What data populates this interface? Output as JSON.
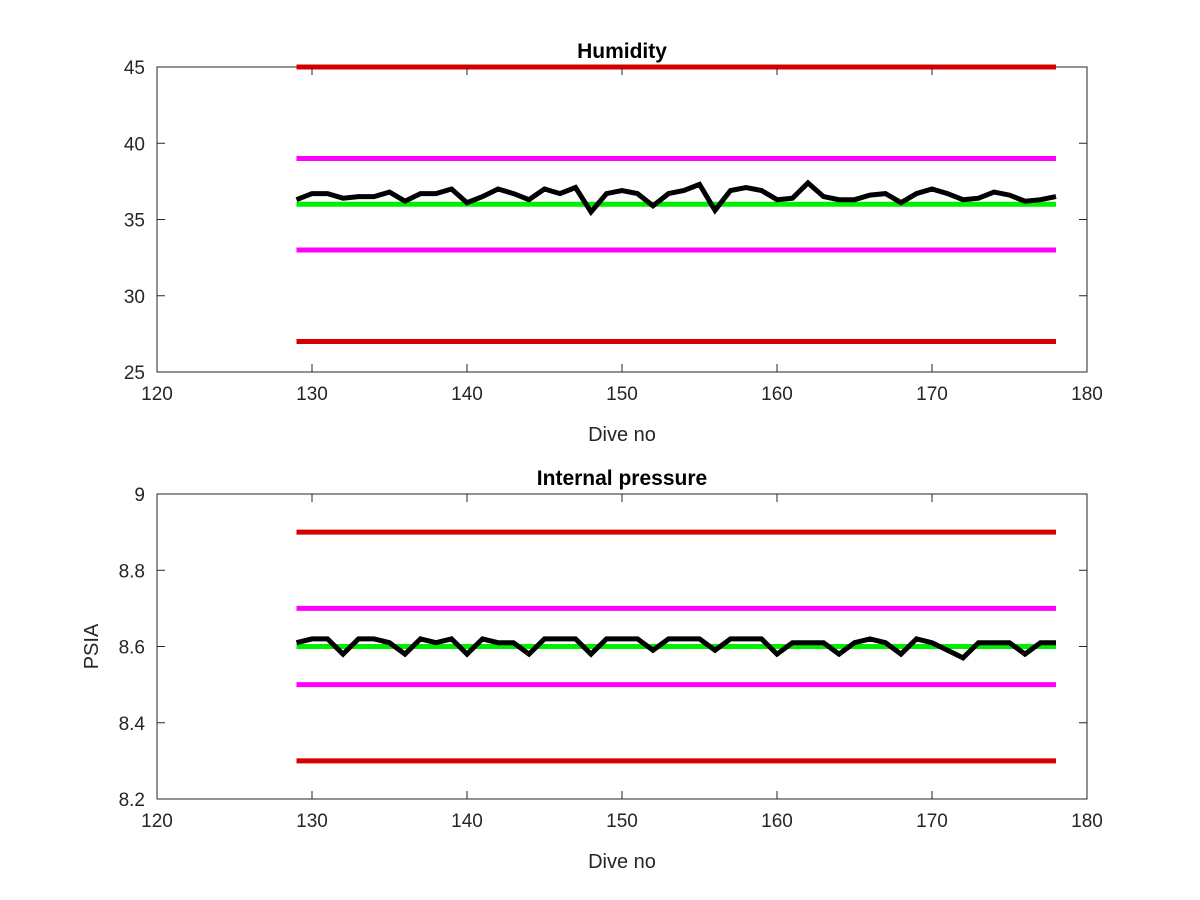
{
  "chart_data": [
    {
      "type": "line",
      "title": "Humidity",
      "xlabel": "Dive no",
      "ylabel": "",
      "xlim": [
        120,
        180
      ],
      "ylim": [
        25,
        45
      ],
      "xticks": [
        120,
        130,
        140,
        150,
        160,
        170,
        180
      ],
      "yticks": [
        25,
        30,
        35,
        40,
        45
      ],
      "xtick_labels": [
        "120",
        "130",
        "140",
        "150",
        "160",
        "170",
        "180"
      ],
      "ytick_labels": [
        "25",
        "30",
        "35",
        "40",
        "45"
      ],
      "grid": false,
      "series": [
        {
          "color": "#d40000",
          "x": [
            129,
            178
          ],
          "values": [
            45,
            45
          ]
        },
        {
          "color": "#ff00ff",
          "x": [
            129,
            178
          ],
          "values": [
            39,
            39
          ]
        },
        {
          "color": "#00ee00",
          "x": [
            129,
            178
          ],
          "values": [
            36,
            36
          ]
        },
        {
          "color": "#ff00ff",
          "x": [
            129,
            178
          ],
          "values": [
            33,
            33
          ]
        },
        {
          "color": "#d40000",
          "x": [
            129,
            178
          ],
          "values": [
            27,
            27
          ]
        },
        {
          "color": "#000000",
          "x": [
            129,
            130,
            131,
            132,
            133,
            134,
            135,
            136,
            137,
            138,
            139,
            140,
            141,
            142,
            143,
            144,
            145,
            146,
            147,
            148,
            149,
            150,
            151,
            152,
            153,
            154,
            155,
            156,
            157,
            158,
            159,
            160,
            161,
            162,
            163,
            164,
            165,
            166,
            167,
            168,
            169,
            170,
            171,
            172,
            173,
            174,
            175,
            176,
            177,
            178
          ],
          "values": [
            36.3,
            36.7,
            36.7,
            36.4,
            36.5,
            36.5,
            36.8,
            36.2,
            36.7,
            36.7,
            37.0,
            36.1,
            36.5,
            37.0,
            36.7,
            36.3,
            37.0,
            36.7,
            37.1,
            35.5,
            36.7,
            36.9,
            36.7,
            35.9,
            36.7,
            36.9,
            37.3,
            35.6,
            36.9,
            37.1,
            36.9,
            36.3,
            36.4,
            37.4,
            36.5,
            36.3,
            36.3,
            36.6,
            36.7,
            36.1,
            36.7,
            37.0,
            36.7,
            36.3,
            36.4,
            36.8,
            36.6,
            36.2,
            36.3,
            36.5
          ]
        }
      ]
    },
    {
      "type": "line",
      "title": "Internal pressure",
      "xlabel": "Dive no",
      "ylabel": "PSIA",
      "xlim": [
        120,
        180
      ],
      "ylim": [
        8.2,
        9.0
      ],
      "xticks": [
        120,
        130,
        140,
        150,
        160,
        170,
        180
      ],
      "yticks": [
        8.2,
        8.4,
        8.6,
        8.8,
        9.0
      ],
      "xtick_labels": [
        "120",
        "130",
        "140",
        "150",
        "160",
        "170",
        "180"
      ],
      "ytick_labels": [
        "8.2",
        "8.4",
        "8.6",
        "8.8",
        "9"
      ],
      "grid": false,
      "series": [
        {
          "color": "#d40000",
          "x": [
            129,
            178
          ],
          "values": [
            8.9,
            8.9
          ]
        },
        {
          "color": "#ff00ff",
          "x": [
            129,
            178
          ],
          "values": [
            8.7,
            8.7
          ]
        },
        {
          "color": "#00ee00",
          "x": [
            129,
            178
          ],
          "values": [
            8.6,
            8.6
          ]
        },
        {
          "color": "#ff00ff",
          "x": [
            129,
            178
          ],
          "values": [
            8.5,
            8.5
          ]
        },
        {
          "color": "#d40000",
          "x": [
            129,
            178
          ],
          "values": [
            8.3,
            8.3
          ]
        },
        {
          "color": "#000000",
          "x": [
            129,
            130,
            131,
            132,
            133,
            134,
            135,
            136,
            137,
            138,
            139,
            140,
            141,
            142,
            143,
            144,
            145,
            146,
            147,
            148,
            149,
            150,
            151,
            152,
            153,
            154,
            155,
            156,
            157,
            158,
            159,
            160,
            161,
            162,
            163,
            164,
            165,
            166,
            167,
            168,
            169,
            170,
            171,
            172,
            173,
            174,
            175,
            176,
            177,
            178
          ],
          "values": [
            8.61,
            8.62,
            8.62,
            8.58,
            8.62,
            8.62,
            8.61,
            8.58,
            8.62,
            8.61,
            8.62,
            8.58,
            8.62,
            8.61,
            8.61,
            8.58,
            8.62,
            8.62,
            8.62,
            8.58,
            8.62,
            8.62,
            8.62,
            8.59,
            8.62,
            8.62,
            8.62,
            8.59,
            8.62,
            8.62,
            8.62,
            8.58,
            8.61,
            8.61,
            8.61,
            8.58,
            8.61,
            8.62,
            8.61,
            8.58,
            8.62,
            8.61,
            8.59,
            8.57,
            8.61,
            8.61,
            8.61,
            8.58,
            8.61,
            8.61
          ]
        }
      ]
    }
  ]
}
